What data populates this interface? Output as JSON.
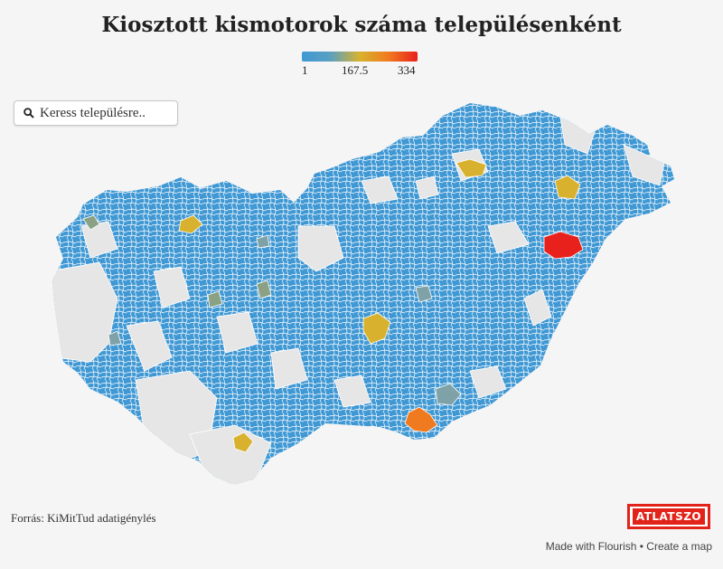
{
  "title": "Kiosztott kismotorok száma településenként",
  "legend": {
    "min_label": "1",
    "mid_label": "167.5",
    "max_label": "334",
    "colors": [
      "#3f98d4",
      "#5aa0c0",
      "#d8b22e",
      "#f07a20",
      "#e8211c"
    ]
  },
  "search": {
    "placeholder": "Keress településre.."
  },
  "map": {
    "region": "Hungary",
    "base_color": "#3f98d4",
    "no_data_color": "#e6e6e6",
    "border_color": "#ffffff"
  },
  "source": "Forrás: KiMitTud adatigénylés",
  "logo": {
    "text": "ATLATSZO",
    "color": "#e2231a"
  },
  "footer": {
    "made_with": "Made with Flourish",
    "separator": " • ",
    "create": "Create a map"
  }
}
